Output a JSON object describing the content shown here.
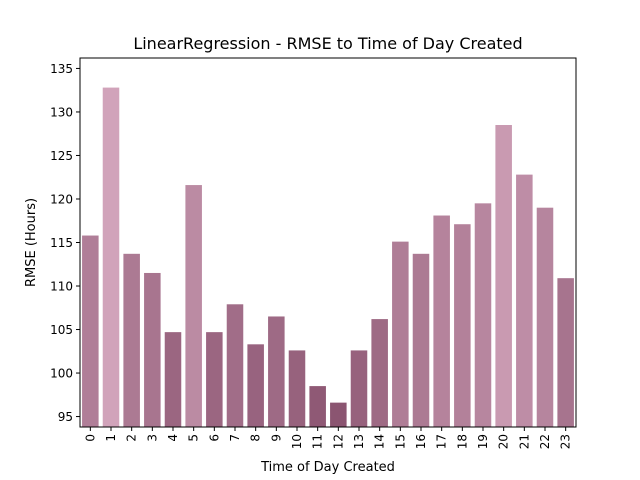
{
  "chart_data": {
    "type": "bar",
    "title": "LinearRegression - RMSE to Time of Day Created",
    "xlabel": "Time of Day Created",
    "ylabel": "RMSE (Hours)",
    "categories": [
      "0",
      "1",
      "2",
      "3",
      "4",
      "5",
      "6",
      "7",
      "8",
      "9",
      "10",
      "11",
      "12",
      "13",
      "14",
      "15",
      "16",
      "17",
      "18",
      "19",
      "20",
      "21",
      "22",
      "23"
    ],
    "values": [
      115.8,
      132.8,
      113.7,
      111.5,
      104.7,
      121.6,
      104.7,
      107.9,
      103.3,
      106.5,
      102.6,
      98.5,
      96.6,
      102.6,
      106.2,
      115.1,
      113.7,
      118.1,
      117.1,
      119.5,
      128.5,
      122.8,
      119.0,
      110.9
    ],
    "ylim": [
      93.8,
      136.2
    ],
    "yticks": [
      95,
      100,
      105,
      110,
      115,
      120,
      125,
      130,
      135
    ],
    "grid": false,
    "color_light": "#d1a3ba",
    "color_dark": "#8b5571"
  }
}
